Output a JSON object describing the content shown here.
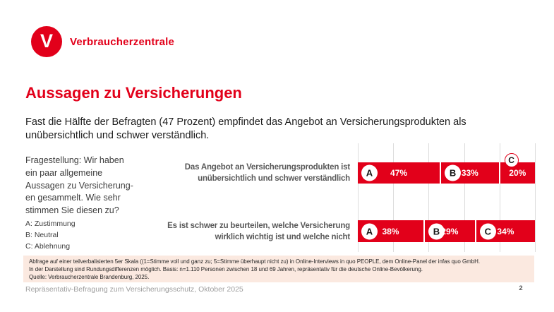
{
  "brand": {
    "name": "Verbraucherzentrale",
    "logo_letter": "V"
  },
  "title": "Aussagen zu Versicherungen",
  "subtitle": "Fast die Hälfte der Befragten (47 Prozent) empfindet das Angebot an Versicherungsprodukten als unübersichtlich und schwer verständlich.",
  "question": {
    "text": "Fragestellung: Wir haben\nein paar allgemeine\nAussagen zu Versicherung-\nen gesammelt. Wie sehr\nstimmen Sie diesen zu?",
    "legend": [
      "A: Zustimmung",
      "B: Neutral",
      "C: Ablehnung"
    ]
  },
  "chart_data": {
    "type": "bar",
    "orientation": "horizontal",
    "stacked": true,
    "unit": "%",
    "axis": {
      "xlim": [
        0,
        100
      ],
      "gridline_step": 20,
      "gridlines": true
    },
    "legend": {
      "A": "Zustimmung",
      "B": "Neutral",
      "C": "Ablehnung"
    },
    "bar_color": "#e2001a",
    "rows": [
      {
        "category": "Das Angebot an Versicherungsprodukten ist\nunübersichtlich und schwer verständlich",
        "segments": [
          {
            "letter": "A",
            "value": 47,
            "label": "47%",
            "badge_position": "inside"
          },
          {
            "letter": "B",
            "value": 33,
            "label": "33%",
            "badge_position": "inside"
          },
          {
            "letter": "C",
            "value": 20,
            "label": "20%",
            "badge_position": "above"
          }
        ]
      },
      {
        "category": "Es ist schwer zu beurteilen, welche Versicherung\nwirklich wichtig ist und welche nicht",
        "segments": [
          {
            "letter": "A",
            "value": 38,
            "label": "38%",
            "badge_position": "inside"
          },
          {
            "letter": "B",
            "value": 29,
            "label": "29%",
            "badge_position": "inside"
          },
          {
            "letter": "C",
            "value": 34,
            "label": "34%",
            "badge_position": "inside"
          }
        ]
      }
    ]
  },
  "footnote": {
    "lines": [
      "Abfrage auf einer teilverbalisierten 5er Skala ((1=Stimme voll und ganz zu; 5=Stimme überhaupt nicht zu) in Online-Interviews in quo PEOPLE, dem Online-Panel der infas quo GmbH.",
      "In der Darstellung sind Rundungsdifferenzen möglich. Basis: n=1.110 Personen zwischen 18 und 69 Jahren, repräsentativ für die deutsche Online-Bevölkerung.",
      "Quelle: Verbraucherzentrale Brandenburg, 2025."
    ],
    "background": "#fbe9e0"
  },
  "footer": {
    "text": "Repräsentativ-Befragung zum Versicherungsschutz, Oktober 2025",
    "page_number": "2"
  },
  "colors": {
    "accent_red": "#e2001a",
    "gridline": "#dcdcdc",
    "label_gray": "#595959",
    "footer_gray": "#9e9e9e"
  }
}
